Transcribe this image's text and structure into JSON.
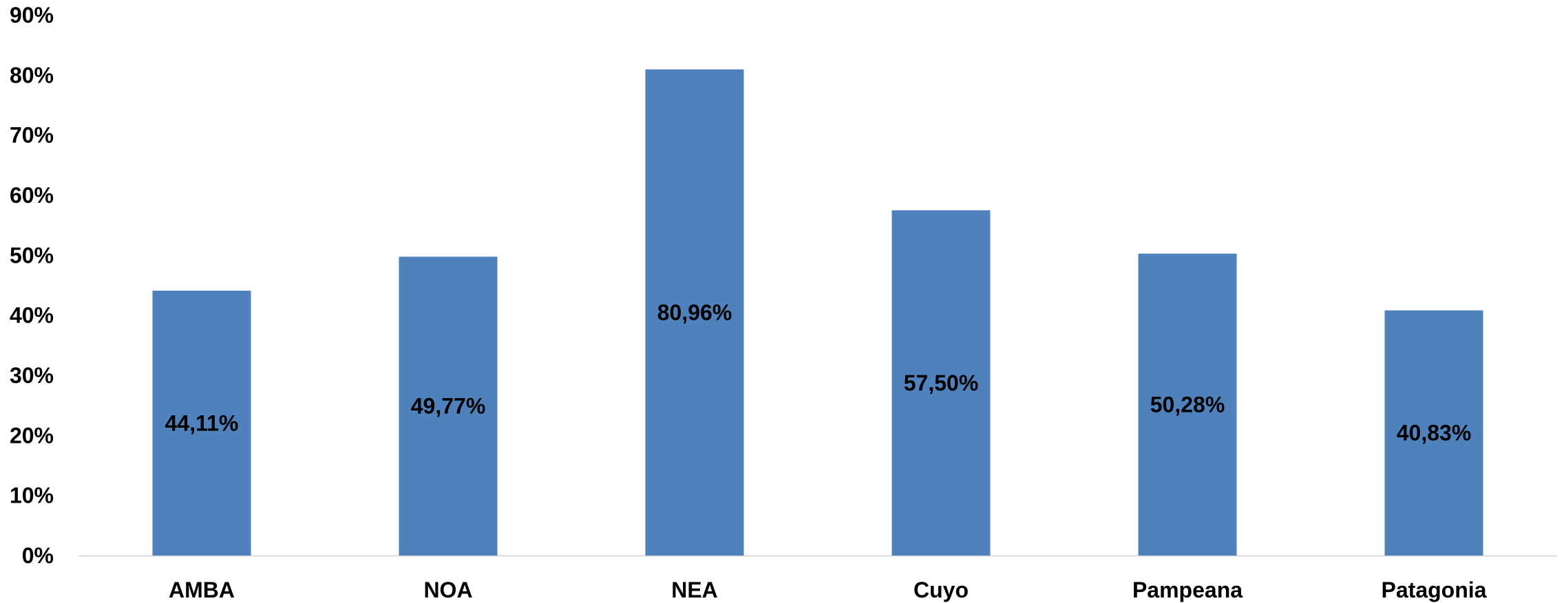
{
  "chart_data": {
    "type": "bar",
    "title": "",
    "xlabel": "",
    "ylabel": "",
    "categories": [
      "AMBA",
      "NOA",
      "NEA",
      "Cuyo",
      "Pampeana",
      "Patagonia"
    ],
    "values": [
      44.11,
      49.77,
      80.96,
      57.5,
      50.28,
      40.83
    ],
    "data_labels": [
      "44,11%",
      "49,77%",
      "80,96%",
      "57,50%",
      "50,28%",
      "40,83%"
    ],
    "ylim": [
      0,
      90
    ],
    "y_ticks": [
      0,
      10,
      20,
      30,
      40,
      50,
      60,
      70,
      80,
      90
    ],
    "y_tick_labels": [
      "0%",
      "10%",
      "20%",
      "30%",
      "40%",
      "50%",
      "60%",
      "70%",
      "80%",
      "90%"
    ],
    "grid": false,
    "legend": "none",
    "bar_color": "#4F81BD",
    "axis_color": "#D9D9D9",
    "text_color": "#000000"
  }
}
